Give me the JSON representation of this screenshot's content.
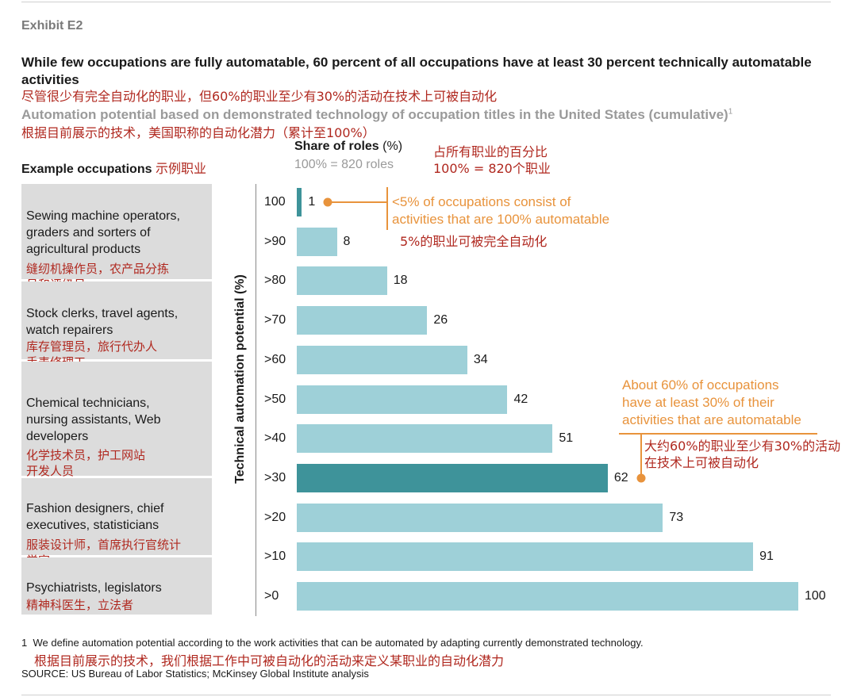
{
  "exhibit": "Exhibit E2",
  "title": "While few occupations are fully automatable, 60 percent of all occupations have at least 30 percent technically automatable activities",
  "title_cn": "尽管很少有完全自动化的职业，但60%的职业至少有30%的活动在技术上可被自动化",
  "subtitle": "Automation potential based on demonstrated technology of occupation titles in the United States (cumulative)",
  "subtitle_sup": "1",
  "subtitle_cn": "根据目前展示的技术，美国职称的自动化潜力（累计至100%）",
  "examples_heading": "Example occupations",
  "examples_heading_cn": "示例职业",
  "share_heading": "Share of roles",
  "share_unit": "(%)",
  "share_sub": "100% = 820 roles",
  "share_cn_1": "占所有职业的百分比",
  "share_cn_2": "100% = 820个职业",
  "occupations": [
    {
      "en": "Sewing machine operators, graders and sorters of agricultural products",
      "cn": "缝纫机操作员，农产品分拣员和评级员"
    },
    {
      "en": "Stock clerks, travel agents, watch repairers",
      "cn": "库存管理员，旅行代办人手表修理工"
    },
    {
      "en": "Chemical technicians, nursing assistants, Web developers",
      "cn": "化学技术员，护工网站开发人员"
    },
    {
      "en": "Fashion designers, chief executives, statisticians",
      "cn": "服装设计师，首席执行官统计学家"
    },
    {
      "en": "Psychiatrists, legislators",
      "cn": "精神科医生，立法者"
    }
  ],
  "colors": {
    "bar": "#9ed0d8",
    "highlight": "#3e939a",
    "annotation": "#e8933c",
    "cn_text": "#b0281f"
  },
  "chart_data": {
    "type": "bar",
    "orientation": "horizontal",
    "ylabel": "Technical automation potential (%)",
    "categories": [
      "100",
      ">90",
      ">80",
      ">70",
      ">60",
      ">50",
      ">40",
      ">30",
      ">20",
      ">10",
      ">0"
    ],
    "values": [
      1,
      8,
      18,
      26,
      34,
      42,
      51,
      62,
      73,
      91,
      100
    ],
    "value_labels": [
      "1",
      "8",
      "18",
      "26",
      "34",
      "42",
      "51",
      "62",
      "73",
      "91",
      "100"
    ],
    "highlighted": [
      "100",
      ">30"
    ],
    "xlim": [
      0,
      100
    ],
    "annotations": [
      {
        "category": "100",
        "text": "<5% of occupations consist of activities that are 100% automatable",
        "cn": "5%的职业可被完全自动化"
      },
      {
        "category": ">30",
        "text": "About 60% of occupations have at least 30% of their activities that are automatable",
        "cn": "大约60%的职业至少有30%的活动在技术上可被自动化"
      }
    ]
  },
  "annotation_1_lines": [
    "<5% of occupations consist of",
    "activities that are 100% automatable"
  ],
  "annotation_1_cn": "5%的职业可被完全自动化",
  "annotation_2_lines": [
    "About 60% of occupations",
    "have at least 30% of their",
    "activities that are automatable"
  ],
  "annotation_2_cn_lines": [
    "大约60%的职业至少有30%的活动",
    "在技术上可被自动化"
  ],
  "footnote_num": "1",
  "footnote": "We define automation potential according to the work activities that can be automated by adapting currently demonstrated technology.",
  "footnote_cn": "根据目前展示的技术，我们根据工作中可被自动化的活动来定义某职业的自动化潜力",
  "source": "SOURCE: US Bureau of Labor Statistics; McKinsey Global Institute analysis"
}
